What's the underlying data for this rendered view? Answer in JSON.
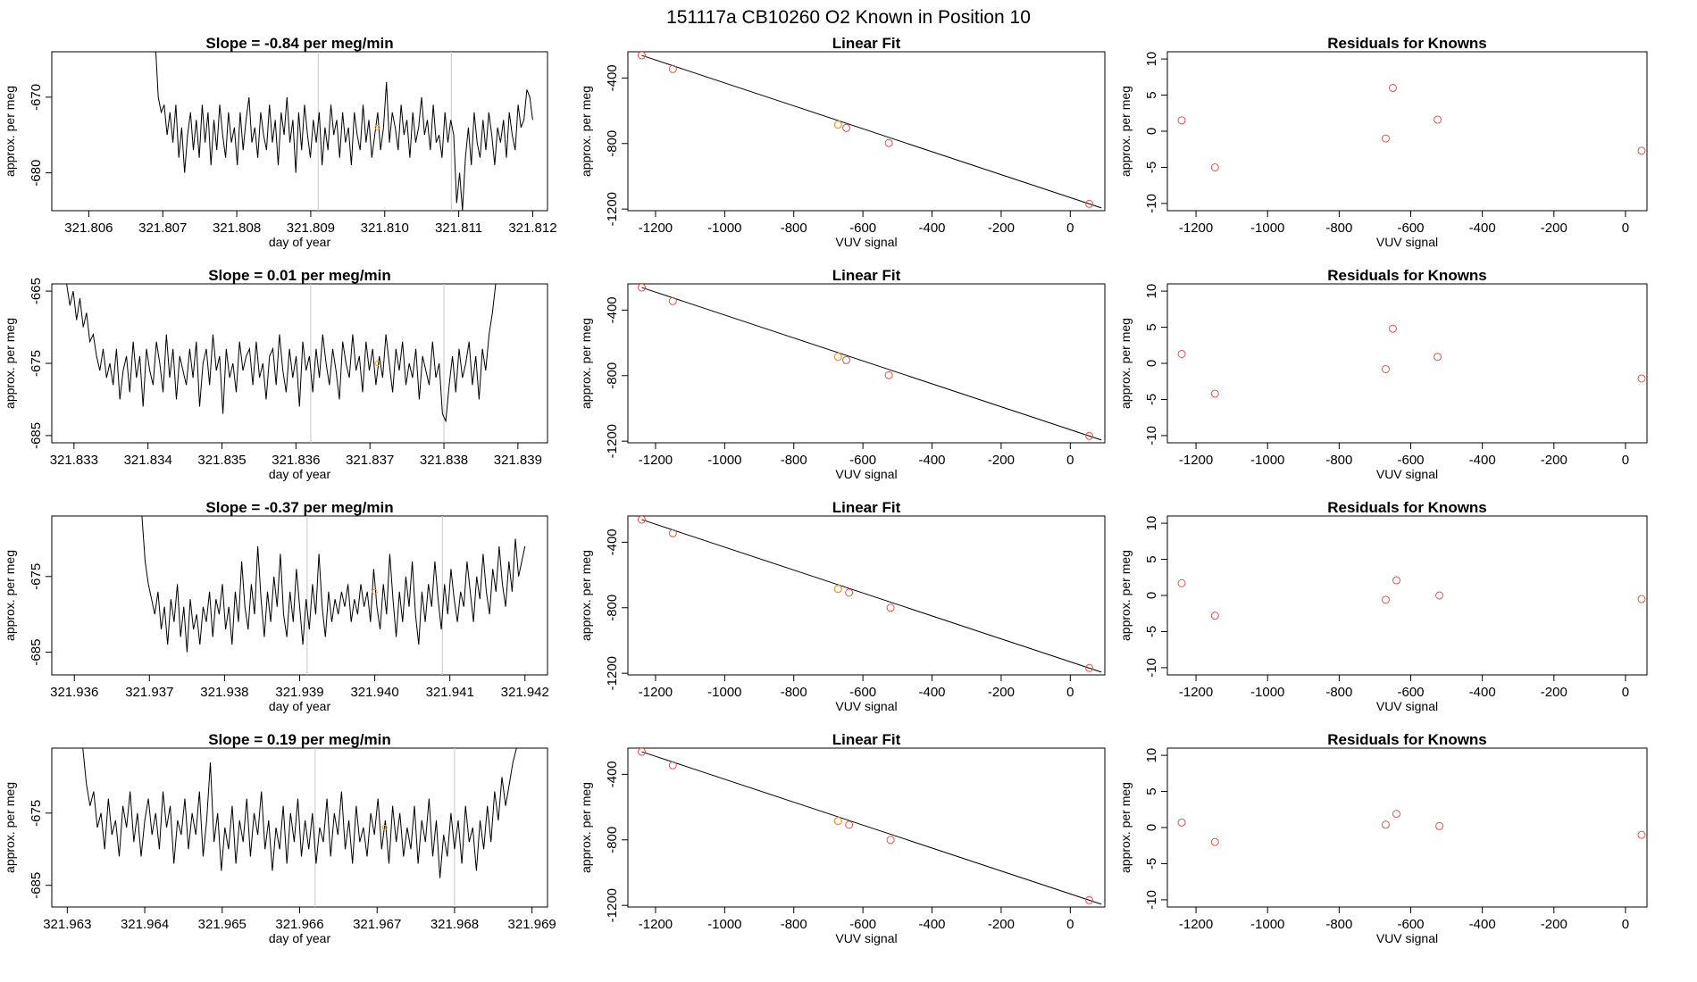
{
  "page_title": "151117a      CB10260    O2 Known in Position  10",
  "colors": {
    "line": "#000000",
    "marker": "#e8504a",
    "highlight": "#f0a030",
    "vline": "#c8c8c8"
  },
  "chart_data": [
    {
      "type": "line",
      "title": "Slope =  -0.84  per meg/min",
      "xlabel": "day of year",
      "ylabel": "approx. per meg",
      "xlim": [
        321.8055,
        321.8122
      ],
      "ylim": [
        -685,
        -664
      ],
      "xticks": [
        "321.806",
        "321.807",
        "321.808",
        "321.809",
        "321.810",
        "321.811",
        "321.812"
      ],
      "yticks": [
        "-670",
        "-680"
      ],
      "vlines": [
        321.8091,
        321.8109
      ],
      "highlight": [
        321.8099,
        -674
      ],
      "series_start": 321.8069,
      "series_end": 321.812,
      "series": [
        -663,
        -670,
        -672,
        -671,
        -675,
        -672,
        -676,
        -671,
        -678,
        -674,
        -680,
        -675,
        -672,
        -677,
        -673,
        -678,
        -671,
        -676,
        -672,
        -679,
        -673,
        -677,
        -671,
        -675,
        -678,
        -672,
        -676,
        -674,
        -679,
        -672,
        -677,
        -673,
        -670,
        -676,
        -674,
        -678,
        -672,
        -675,
        -677,
        -671,
        -676,
        -673,
        -679,
        -672,
        -675,
        -670,
        -676,
        -673,
        -680,
        -672,
        -677,
        -671,
        -675,
        -678,
        -673,
        -676,
        -672,
        -679,
        -674,
        -677,
        -671,
        -675,
        -673,
        -678,
        -672,
        -676,
        -674,
        -679,
        -672,
        -675,
        -677,
        -671,
        -676,
        -673,
        -678,
        -675,
        -672,
        -677,
        -674,
        -668,
        -676,
        -672,
        -674,
        -677,
        -671,
        -675,
        -673,
        -678,
        -672,
        -676,
        -674,
        -670,
        -675,
        -673,
        -677,
        -671,
        -676,
        -675,
        -678,
        -672,
        -676,
        -673,
        -675,
        -684,
        -680,
        -685,
        -678,
        -674,
        -679,
        -672,
        -676,
        -678,
        -673,
        -677,
        -672,
        -675,
        -679,
        -674,
        -676,
        -673,
        -678,
        -672,
        -675,
        -677,
        -671,
        -674,
        -673,
        -669,
        -670,
        -673
      ],
      "axes_key": "r0"
    },
    {
      "type": "scatter",
      "title": "Linear Fit",
      "xlabel": "VUV signal",
      "ylabel": "approx. per meg",
      "xlim": [
        -1280,
        100
      ],
      "ylim": [
        -1210,
        -240
      ],
      "xticks": [
        "-1200",
        "-1000",
        "-800",
        "-600",
        "-400",
        "-200",
        "0"
      ],
      "yticks": [
        "-400",
        "-800",
        "-1200"
      ],
      "points": [
        [
          -1240,
          -262
        ],
        [
          -1150,
          -345
        ],
        [
          -672,
          -685
        ],
        [
          -648,
          -705
        ],
        [
          -525,
          -797
        ],
        [
          55,
          -1168
        ]
      ],
      "highlight": [
        -672,
        -685
      ],
      "fit_line": [
        [
          -1240,
          -262
        ],
        [
          90,
          -1193
        ]
      ]
    },
    {
      "type": "scatter",
      "title": "Residuals for Knowns",
      "xlabel": "VUV signal",
      "ylabel": "approx. per meg",
      "xlim": [
        -1280,
        60
      ],
      "ylim": [
        -11,
        11
      ],
      "xticks": [
        "-1200",
        "-1000",
        "-800",
        "-600",
        "-400",
        "-200",
        "0"
      ],
      "yticks": [
        "-10",
        "-5",
        "0",
        "5",
        "10"
      ],
      "points": [
        [
          -1240,
          1.5
        ],
        [
          -1147,
          -5
        ],
        [
          -670,
          -1
        ],
        [
          -650,
          6
        ],
        [
          -525,
          1.6
        ],
        [
          45,
          -2.7
        ]
      ]
    },
    {
      "type": "line",
      "title": "Slope =  0.01  per meg/min",
      "xlabel": "day of year",
      "ylabel": "approx. per meg",
      "xlim": [
        321.8327,
        321.8394
      ],
      "ylim": [
        -686,
        -664
      ],
      "xticks": [
        "321.833",
        "321.834",
        "321.835",
        "321.836",
        "321.837",
        "321.838",
        "321.839"
      ],
      "yticks": [
        "-665",
        "-675",
        "-685"
      ],
      "vlines": [
        321.8362,
        321.838
      ],
      "highlight": [
        321.8371,
        -675
      ],
      "series_start": 321.8329,
      "series_end": 321.8387,
      "series": [
        -664,
        -667,
        -665,
        -669,
        -666,
        -670,
        -668,
        -672,
        -671,
        -674,
        -676,
        -673,
        -677,
        -675,
        -678,
        -673,
        -680,
        -676,
        -674,
        -679,
        -672,
        -677,
        -674,
        -681,
        -673,
        -676,
        -678,
        -672,
        -675,
        -679,
        -671,
        -677,
        -673,
        -680,
        -674,
        -676,
        -678,
        -673,
        -677,
        -672,
        -681,
        -675,
        -673,
        -678,
        -671,
        -676,
        -674,
        -682,
        -673,
        -677,
        -675,
        -679,
        -672,
        -676,
        -674,
        -673,
        -678,
        -672,
        -677,
        -675,
        -680,
        -674,
        -673,
        -678,
        -671,
        -676,
        -679,
        -673,
        -677,
        -674,
        -681,
        -672,
        -676,
        -674,
        -679,
        -673,
        -677,
        -671,
        -675,
        -678,
        -673,
        -676,
        -680,
        -672,
        -675,
        -677,
        -671,
        -676,
        -674,
        -679,
        -672,
        -676,
        -673,
        -678,
        -674,
        -677,
        -671,
        -675,
        -679,
        -673,
        -676,
        -672,
        -678,
        -675,
        -677,
        -673,
        -680,
        -674,
        -676,
        -678,
        -672,
        -677,
        -675,
        -682,
        -683,
        -678,
        -674,
        -679,
        -673,
        -677,
        -675,
        -672,
        -678,
        -674,
        -680,
        -673,
        -676,
        -671,
        -668,
        -664
      ],
      "axes_key": "r1"
    },
    {
      "type": "scatter",
      "title": "Linear Fit",
      "xlabel": "VUV signal",
      "ylabel": "approx. per meg",
      "xlim": [
        -1280,
        100
      ],
      "ylim": [
        -1210,
        -240
      ],
      "xticks": [
        "-1200",
        "-1000",
        "-800",
        "-600",
        "-400",
        "-200",
        "0"
      ],
      "yticks": [
        "-400",
        "-800",
        "-1200"
      ],
      "points": [
        [
          -1240,
          -262
        ],
        [
          -1150,
          -345
        ],
        [
          -672,
          -685
        ],
        [
          -648,
          -705
        ],
        [
          -525,
          -797
        ],
        [
          55,
          -1168
        ]
      ],
      "highlight": [
        -672,
        -685
      ],
      "fit_line": [
        [
          -1240,
          -262
        ],
        [
          90,
          -1193
        ]
      ]
    },
    {
      "type": "scatter",
      "title": "Residuals for Knowns",
      "xlabel": "VUV signal",
      "ylabel": "approx. per meg",
      "xlim": [
        -1280,
        60
      ],
      "ylim": [
        -11,
        11
      ],
      "xticks": [
        "-1200",
        "-1000",
        "-800",
        "-600",
        "-400",
        "-200",
        "0"
      ],
      "yticks": [
        "-10",
        "-5",
        "0",
        "5",
        "10"
      ],
      "points": [
        [
          -1240,
          1.3
        ],
        [
          -1147,
          -4.2
        ],
        [
          -670,
          -0.8
        ],
        [
          -650,
          4.8
        ],
        [
          -525,
          0.9
        ],
        [
          45,
          -2.1
        ]
      ]
    },
    {
      "type": "line",
      "title": "Slope =  -0.37  per meg/min",
      "xlabel": "day of year",
      "ylabel": "approx. per meg",
      "xlim": [
        321.9357,
        321.9423
      ],
      "ylim": [
        -688,
        -667
      ],
      "xticks": [
        "321.937",
        "321.938",
        "321.939",
        "321.940",
        "321.941",
        "321.942"
      ],
      "x_first_tick_label": "321.936",
      "yticks": [
        "-675",
        "-685"
      ],
      "vlines": [
        321.9391,
        321.9409
      ],
      "highlight": [
        321.94,
        -677
      ],
      "series_start": 321.9369,
      "series_end": 321.942,
      "series": [
        -667,
        -673,
        -676,
        -678,
        -680,
        -677,
        -682,
        -679,
        -684,
        -678,
        -681,
        -676,
        -683,
        -679,
        -685,
        -678,
        -682,
        -680,
        -684,
        -679,
        -681,
        -677,
        -683,
        -678,
        -680,
        -676,
        -682,
        -679,
        -684,
        -677,
        -681,
        -673,
        -679,
        -682,
        -676,
        -680,
        -671,
        -678,
        -683,
        -677,
        -681,
        -675,
        -679,
        -672,
        -680,
        -683,
        -677,
        -681,
        -674,
        -679,
        -684,
        -678,
        -682,
        -676,
        -680,
        -672,
        -679,
        -683,
        -677,
        -681,
        -678,
        -680,
        -677,
        -679,
        -676,
        -681,
        -678,
        -680,
        -676,
        -679,
        -677,
        -681,
        -674,
        -679,
        -682,
        -676,
        -680,
        -672,
        -678,
        -683,
        -677,
        -681,
        -675,
        -679,
        -673,
        -680,
        -684,
        -677,
        -681,
        -676,
        -679,
        -673,
        -678,
        -682,
        -676,
        -680,
        -674,
        -678,
        -681,
        -677,
        -679,
        -673,
        -677,
        -681,
        -675,
        -678,
        -672,
        -677,
        -680,
        -674,
        -677,
        -671,
        -676,
        -679,
        -673,
        -677,
        -670,
        -675,
        -673,
        -671
      ],
      "axes_key": "r2"
    },
    {
      "type": "scatter",
      "title": "Linear Fit",
      "xlabel": "VUV signal",
      "ylabel": "approx. per meg",
      "xlim": [
        -1280,
        100
      ],
      "ylim": [
        -1210,
        -240
      ],
      "xticks": [
        "-1200",
        "-1000",
        "-800",
        "-600",
        "-400",
        "-200",
        "0"
      ],
      "yticks": [
        "-400",
        "-800",
        "-1200"
      ],
      "points": [
        [
          -1240,
          -262
        ],
        [
          -1150,
          -345
        ],
        [
          -672,
          -685
        ],
        [
          -640,
          -708
        ],
        [
          -520,
          -800
        ],
        [
          55,
          -1168
        ]
      ],
      "highlight": [
        -672,
        -685
      ],
      "fit_line": [
        [
          -1240,
          -262
        ],
        [
          90,
          -1193
        ]
      ]
    },
    {
      "type": "scatter",
      "title": "Residuals for Knowns",
      "xlabel": "VUV signal",
      "ylabel": "approx. per meg",
      "xlim": [
        -1280,
        60
      ],
      "ylim": [
        -11,
        11
      ],
      "xticks": [
        "-1200",
        "-1000",
        "-800",
        "-600",
        "-400",
        "-200",
        "0"
      ],
      "yticks": [
        "-10",
        "-5",
        "0",
        "5",
        "10"
      ],
      "points": [
        [
          -1240,
          1.7
        ],
        [
          -1147,
          -2.8
        ],
        [
          -670,
          -0.6
        ],
        [
          -640,
          2.1
        ],
        [
          -520,
          0
        ],
        [
          45,
          -0.5
        ]
      ]
    },
    {
      "type": "line",
      "title": "Slope =  0.19  per meg/min",
      "xlabel": "day of year",
      "ylabel": "approx. per meg",
      "xlim": [
        321.9628,
        321.9692
      ],
      "ylim": [
        -688,
        -666
      ],
      "xticks": [
        "321.963",
        "321.964",
        "321.965",
        "321.966",
        "321.967",
        "321.968",
        "321.969"
      ],
      "yticks": [
        "-675",
        "-685"
      ],
      "vlines": [
        321.9662,
        321.968
      ],
      "highlight": [
        321.9671,
        -677
      ],
      "series_start": 321.9632,
      "series_end": 321.9688,
      "series": [
        -666,
        -671,
        -674,
        -672,
        -677,
        -675,
        -680,
        -673,
        -678,
        -676,
        -681,
        -674,
        -677,
        -672,
        -679,
        -675,
        -681,
        -676,
        -673,
        -678,
        -675,
        -680,
        -672,
        -677,
        -674,
        -682,
        -676,
        -678,
        -673,
        -680,
        -675,
        -678,
        -672,
        -681,
        -676,
        -668,
        -679,
        -675,
        -683,
        -677,
        -680,
        -674,
        -682,
        -676,
        -679,
        -673,
        -681,
        -675,
        -678,
        -672,
        -680,
        -676,
        -683,
        -677,
        -680,
        -674,
        -682,
        -675,
        -679,
        -673,
        -681,
        -676,
        -680,
        -675,
        -682,
        -677,
        -679,
        -673,
        -681,
        -675,
        -678,
        -672,
        -680,
        -676,
        -682,
        -674,
        -679,
        -677,
        -681,
        -675,
        -678,
        -673,
        -680,
        -676,
        -682,
        -674,
        -679,
        -675,
        -681,
        -677,
        -680,
        -674,
        -682,
        -676,
        -679,
        -673,
        -681,
        -676,
        -684,
        -678,
        -681,
        -675,
        -680,
        -676,
        -682,
        -674,
        -679,
        -677,
        -683,
        -676,
        -680,
        -674,
        -679,
        -672,
        -676,
        -670,
        -674,
        -671,
        -668,
        -666
      ],
      "axes_key": "r3"
    },
    {
      "type": "scatter",
      "title": "Linear Fit",
      "xlabel": "VUV signal",
      "ylabel": "approx. per meg",
      "xlim": [
        -1280,
        100
      ],
      "ylim": [
        -1210,
        -240
      ],
      "xticks": [
        "-1200",
        "-1000",
        "-800",
        "-600",
        "-400",
        "-200",
        "0"
      ],
      "yticks": [
        "-400",
        "-800",
        "-1200"
      ],
      "points": [
        [
          -1240,
          -262
        ],
        [
          -1150,
          -345
        ],
        [
          -672,
          -685
        ],
        [
          -640,
          -708
        ],
        [
          -520,
          -800
        ],
        [
          55,
          -1168
        ]
      ],
      "highlight": [
        -672,
        -685
      ],
      "fit_line": [
        [
          -1240,
          -262
        ],
        [
          90,
          -1193
        ]
      ]
    },
    {
      "type": "scatter",
      "title": "Residuals for Knowns",
      "xlabel": "VUV signal",
      "ylabel": "approx. per meg",
      "xlim": [
        -1280,
        60
      ],
      "ylim": [
        -11,
        11
      ],
      "xticks": [
        "-1200",
        "-1000",
        "-800",
        "-600",
        "-400",
        "-200",
        "0"
      ],
      "yticks": [
        "-10",
        "-5",
        "0",
        "5",
        "10"
      ],
      "points": [
        [
          -1240,
          0.7
        ],
        [
          -1147,
          -2
        ],
        [
          -670,
          0.4
        ],
        [
          -640,
          1.9
        ],
        [
          -520,
          0.2
        ],
        [
          45,
          -1
        ]
      ]
    }
  ]
}
